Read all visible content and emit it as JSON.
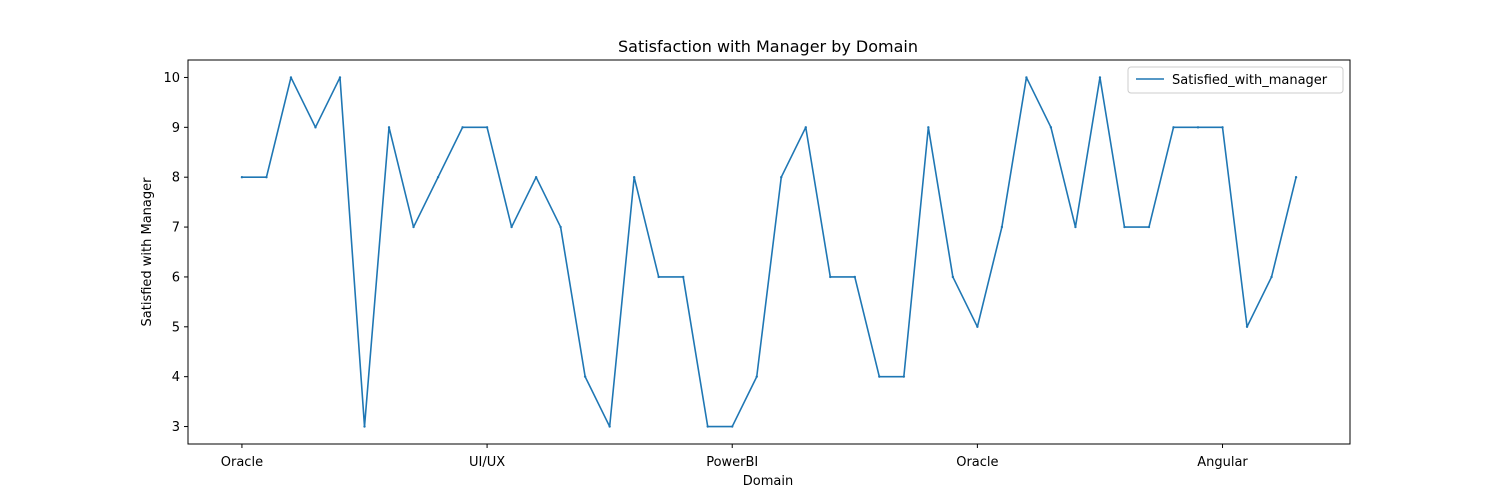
{
  "chart_data": {
    "type": "line",
    "title": "Satisfaction with Manager by Domain",
    "xlabel": "Domain",
    "ylabel": "Satisfied with Manager",
    "x_tick_labels": [
      {
        "index": 0,
        "label": "Oracle"
      },
      {
        "index": 10,
        "label": "UI/UX"
      },
      {
        "index": 20,
        "label": "PowerBI"
      },
      {
        "index": 30,
        "label": "Oracle"
      },
      {
        "index": 40,
        "label": "Angular"
      }
    ],
    "y_ticks": [
      3,
      4,
      5,
      6,
      7,
      8,
      9,
      10
    ],
    "xlim": [
      -2.2,
      45.2
    ],
    "ylim": [
      2.65,
      10.35
    ],
    "grid": false,
    "legend_position": "upper right",
    "series": [
      {
        "name": "Satisfied_with_manager",
        "color": "#1f77b4",
        "values": [
          8,
          8,
          10,
          9,
          10,
          3,
          9,
          7,
          8,
          9,
          9,
          7,
          8,
          7,
          4,
          3,
          8,
          6,
          6,
          3,
          3,
          4,
          8,
          9,
          6,
          6,
          4,
          4,
          9,
          6,
          5,
          7,
          10,
          9,
          7,
          10,
          7,
          7,
          9,
          9,
          9,
          5,
          6,
          8
        ]
      }
    ]
  }
}
